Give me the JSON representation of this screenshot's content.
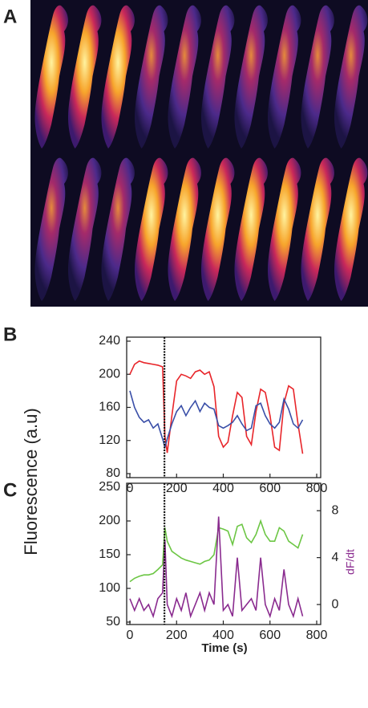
{
  "panel_labels": [
    "A",
    "B",
    "C"
  ],
  "shared_ylabel": "Fluorescence (a.u)",
  "chart_data": [
    {
      "type": "line",
      "xlim": [
        0,
        800
      ],
      "xticks": [
        0,
        200,
        400,
        600,
        800
      ],
      "ylim": [
        80,
        240
      ],
      "yticks": [
        80,
        120,
        160,
        200,
        240
      ],
      "vline": 148,
      "x": [
        0,
        20,
        40,
        60,
        80,
        100,
        120,
        140,
        150,
        160,
        180,
        200,
        220,
        240,
        260,
        280,
        300,
        320,
        340,
        360,
        380,
        400,
        420,
        440,
        460,
        480,
        500,
        520,
        540,
        560,
        580,
        600,
        620,
        640,
        660,
        680,
        700,
        720,
        740
      ],
      "series": [
        {
          "color": "#e8252a",
          "values": [
            200,
            212,
            216,
            214,
            213,
            212,
            211,
            209,
            125,
            105,
            150,
            192,
            200,
            198,
            195,
            203,
            205,
            200,
            203,
            185,
            125,
            112,
            118,
            150,
            178,
            172,
            125,
            115,
            155,
            182,
            178,
            150,
            112,
            108,
            165,
            186,
            182,
            140,
            104
          ]
        },
        {
          "color": "#3a4fa8",
          "values": [
            180,
            160,
            148,
            142,
            145,
            135,
            140,
            122,
            112,
            122,
            140,
            155,
            162,
            150,
            160,
            168,
            155,
            165,
            160,
            158,
            138,
            135,
            138,
            142,
            150,
            140,
            132,
            135,
            162,
            165,
            150,
            140,
            135,
            142,
            170,
            158,
            140,
            135,
            145
          ]
        }
      ]
    },
    {
      "type": "line",
      "xlabel": "Time (s)",
      "y2label": "dF/dt",
      "xlim": [
        0,
        800
      ],
      "xticks": [
        0,
        200,
        400,
        600,
        800
      ],
      "ylim": [
        50,
        250
      ],
      "yticks": [
        50,
        100,
        150,
        200,
        250
      ],
      "y2lim": [
        -1.5,
        10
      ],
      "y2ticks": [
        0,
        4,
        8
      ],
      "vline": 148,
      "x": [
        0,
        20,
        40,
        60,
        80,
        100,
        120,
        140,
        150,
        160,
        180,
        200,
        220,
        240,
        260,
        280,
        300,
        320,
        340,
        360,
        380,
        400,
        420,
        440,
        460,
        480,
        500,
        520,
        540,
        560,
        580,
        600,
        620,
        640,
        660,
        680,
        700,
        720,
        740
      ],
      "series": [
        {
          "color": "#6cc644",
          "values": [
            110,
            115,
            118,
            120,
            120,
            122,
            128,
            135,
            190,
            170,
            155,
            150,
            145,
            142,
            140,
            138,
            136,
            140,
            142,
            150,
            190,
            188,
            185,
            165,
            192,
            195,
            175,
            168,
            180,
            200,
            180,
            170,
            170,
            190,
            185,
            170,
            165,
            160,
            180
          ]
        },
        {
          "color": "#8a2b8f",
          "axis": "y2",
          "values": [
            0.5,
            -0.5,
            0.5,
            -0.5,
            0,
            -1,
            0.5,
            1,
            5.5,
            0,
            -1,
            0.5,
            -0.5,
            1,
            -1,
            0,
            1,
            -0.5,
            1,
            0,
            7.5,
            -0.5,
            0,
            -1,
            4,
            -0.5,
            0,
            0.5,
            -0.5,
            4,
            0,
            -1,
            0.5,
            -0.5,
            3,
            0,
            -1,
            0.5,
            -1
          ]
        }
      ]
    }
  ]
}
